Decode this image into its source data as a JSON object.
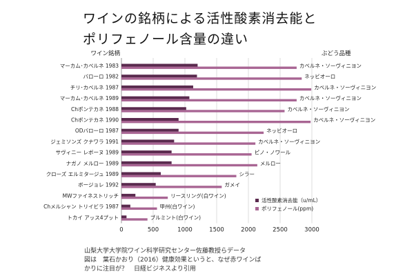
{
  "title": {
    "line1": "ワインの銘柄による活性酸素消去能と",
    "line2": "ポリフェノール含量の違い"
  },
  "credit": {
    "line1": "山梨大学大学院ワイン科学研究センター佐藤教授らデータ",
    "line2": "図は　葉石かおり（2016）健康効果というと、なぜ赤ワインば",
    "line3": "かりに注目が？　日経ビジネスより引用"
  },
  "colors": {
    "antioxidant": "#5a2a4e",
    "polyphenol": "#a86593",
    "grid": "#dddddd"
  },
  "chart_data": {
    "type": "bar",
    "orientation": "horizontal",
    "left_header": "ワイン銘柄",
    "right_header": "ぶどう品種",
    "categories": [
      "マーカム･カベルネ 1983",
      "バローロ 1982",
      "チリ･カベルネ 1987",
      "マーカム･カベルネ 1989",
      "Chポンテカネ 1988",
      "Chポンテカネ 1990",
      "ODバローロ 1987",
      "ジェミソンズ クナワラ 1991",
      "サヴィニー レボーヌ 1989",
      "ナガノ メルロー 1989",
      "クローズ エルミタージュ 1989",
      "ボージョレ 1992",
      "MWファイネストリッチ",
      "Chメルシャン トリイビラ 1987",
      "トカイ アッス4プット"
    ],
    "varieties": [
      "カベルネ・ソーヴィニヨン",
      "ネッビオーロ",
      "カベルネ・ソーヴィニヨン",
      "カベルネ・ソーヴィニヨン",
      "カベルネ・ソーヴィニヨン",
      "カベルネ・ソーヴィニヨン",
      "ネッビオーロ",
      "カベルネ・ソーヴィニヨン",
      "ピノ・ノワール",
      "メルロー",
      "シラー",
      "ガメイ",
      "リースリング(白ワイン)",
      "甲州(白ワイン)",
      "ブルミント(白ワイン)"
    ],
    "series": [
      {
        "name": "活性酸素消去能（u/mL）",
        "values": [
          1200,
          1190,
          1130,
          1070,
          1020,
          900,
          900,
          830,
          790,
          790,
          620,
          540,
          220,
          140,
          80
        ]
      },
      {
        "name": "ポリフェノール(ppm)",
        "values": [
          2760,
          2840,
          2990,
          2760,
          2570,
          2980,
          2240,
          2110,
          2050,
          2140,
          1810,
          1580,
          730,
          560,
          410
        ]
      }
    ],
    "xlim": [
      0,
      3000
    ],
    "xticks": [
      0,
      500,
      1000,
      1500,
      2000,
      2500,
      3000
    ],
    "grid": "vertical",
    "legend_position": "bottom-right"
  }
}
